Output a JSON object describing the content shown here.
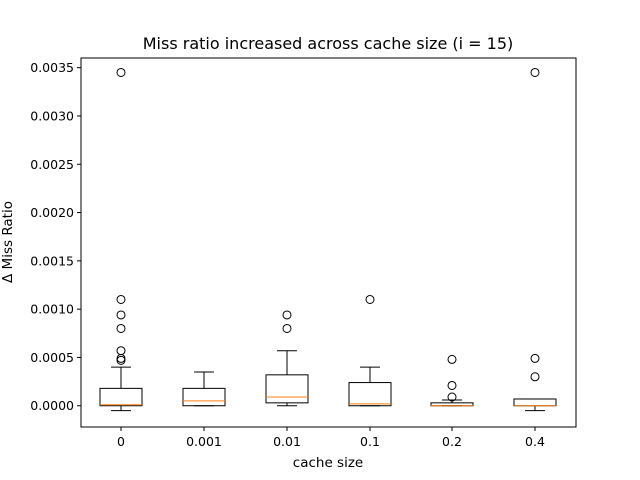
{
  "chart_data": {
    "type": "box",
    "title": "Miss ratio increased across cache size (i = 15)",
    "xlabel": "cache size",
    "ylabel": "Δ Miss Ratio",
    "ylim": [
      -0.00022,
      0.0036
    ],
    "yticks": [
      0.0,
      0.0005,
      0.001,
      0.0015,
      0.002,
      0.0025,
      0.003,
      0.0035
    ],
    "ytick_labels": [
      "0.0000",
      "0.0005",
      "0.0010",
      "0.0015",
      "0.0020",
      "0.0025",
      "0.0030",
      "0.0035"
    ],
    "categories": [
      "0",
      "0.001",
      "0.01",
      "0.1",
      "0.2",
      "0.4"
    ],
    "grid": false,
    "colors": {
      "box": "#000000",
      "median": "#ff7f0e",
      "flier": "#000000"
    },
    "boxes": [
      {
        "category": "0",
        "whisker_low": -5e-05,
        "q1": 0.0,
        "median": 1e-05,
        "q3": 0.00018,
        "whisker_high": 0.0004,
        "fliers": [
          0.00345,
          0.0011,
          0.00094,
          0.0008,
          0.00057,
          0.00049,
          0.00047
        ]
      },
      {
        "category": "0.001",
        "whisker_low": 0.0,
        "q1": 0.0,
        "median": 5e-05,
        "q3": 0.00018,
        "whisker_high": 0.00035,
        "fliers": []
      },
      {
        "category": "0.01",
        "whisker_low": 0.0,
        "q1": 3e-05,
        "median": 9e-05,
        "q3": 0.00032,
        "whisker_high": 0.00057,
        "fliers": [
          0.00094,
          0.0008
        ]
      },
      {
        "category": "0.1",
        "whisker_low": 0.0,
        "q1": 0.0,
        "median": 2e-05,
        "q3": 0.00024,
        "whisker_high": 0.0004,
        "fliers": [
          0.0011
        ]
      },
      {
        "category": "0.2",
        "whisker_low": 0.0,
        "q1": 0.0,
        "median": 0.0,
        "q3": 3e-05,
        "whisker_high": 6e-05,
        "fliers": [
          0.00048,
          0.00021,
          9e-05
        ]
      },
      {
        "category": "0.4",
        "whisker_low": -5e-05,
        "q1": 0.0,
        "median": 0.0,
        "q3": 7e-05,
        "whisker_high": 7e-05,
        "fliers": [
          0.00345,
          0.00049,
          0.0003
        ]
      }
    ]
  }
}
